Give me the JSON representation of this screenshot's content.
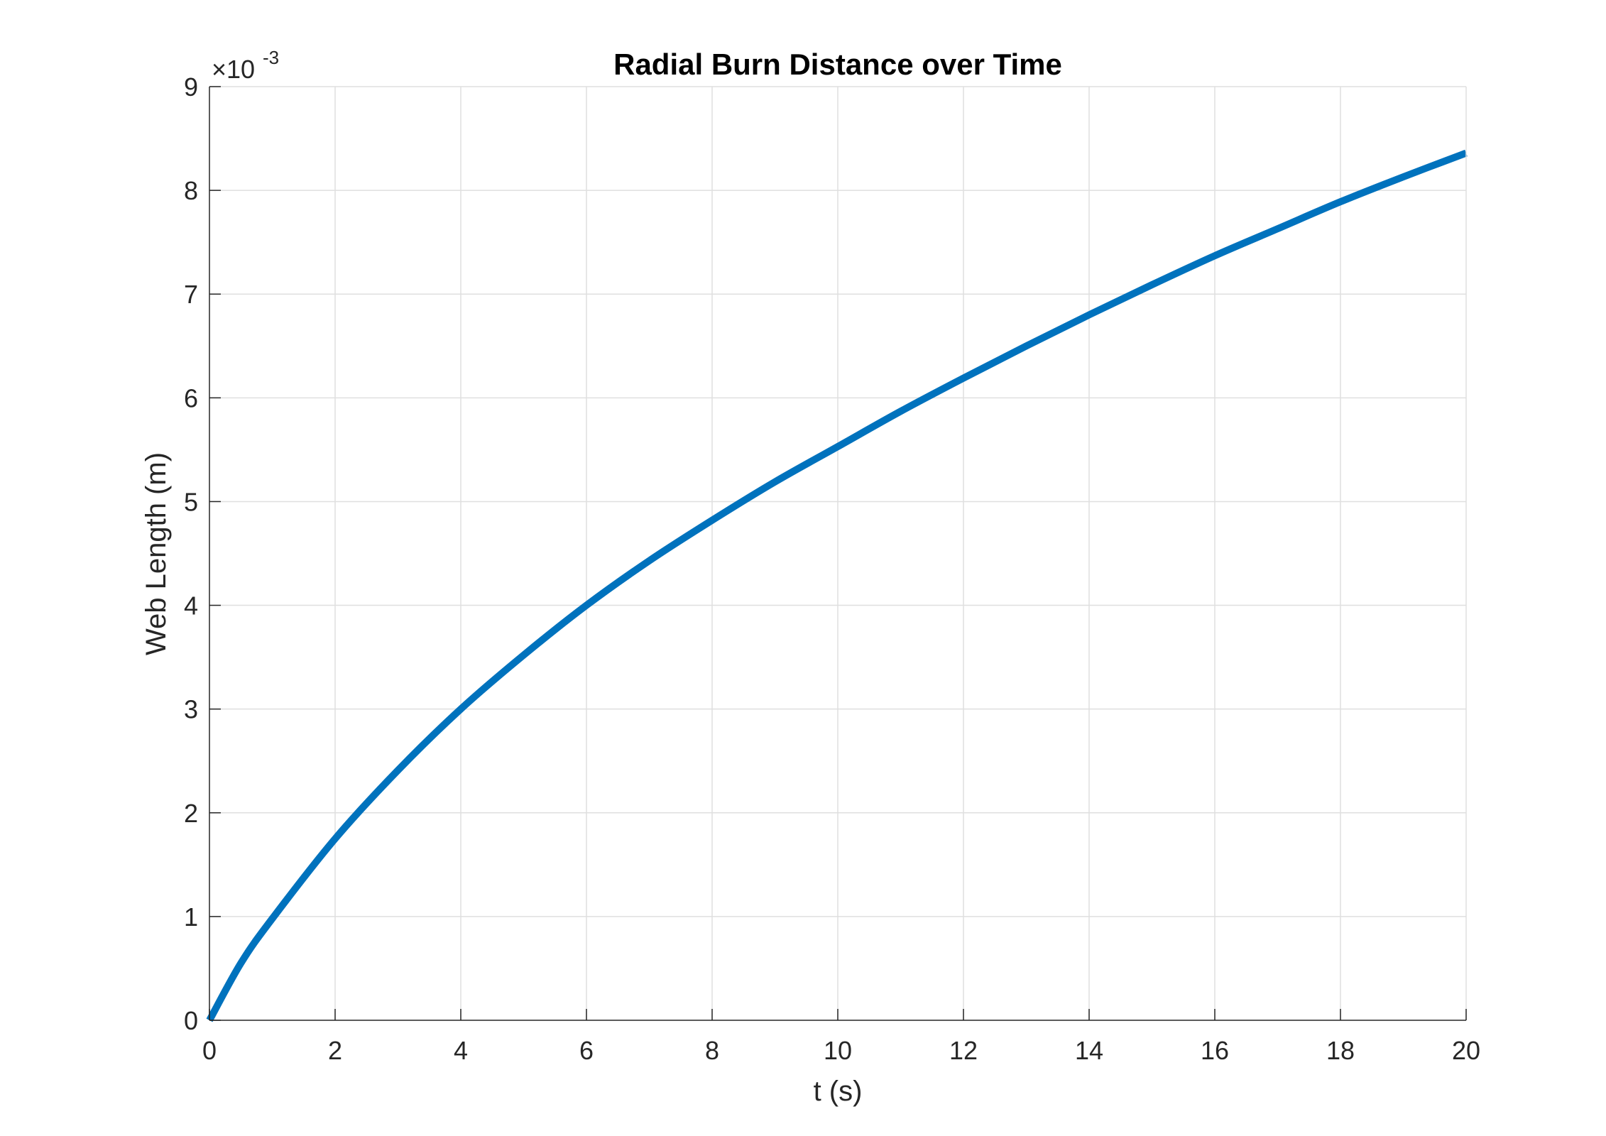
{
  "chart_data": {
    "type": "line",
    "title": "Radial Burn Distance over Time",
    "xlabel": "t (s)",
    "ylabel": "Web Length (m)",
    "xlim": [
      0,
      20
    ],
    "ylim": [
      0,
      0.009
    ],
    "xticks": [
      "0",
      "2",
      "4",
      "6",
      "8",
      "10",
      "12",
      "14",
      "16",
      "18",
      "20"
    ],
    "yticks": [
      "0",
      "1",
      "2",
      "3",
      "4",
      "5",
      "6",
      "7",
      "8",
      "9"
    ],
    "y_exponent_label": "×10",
    "y_exponent_power": "-3",
    "grid": true,
    "line_color": "#0072bd",
    "series": [
      {
        "x": [
          0,
          0.5,
          1,
          2,
          3,
          4,
          5,
          6,
          7,
          8,
          9,
          10,
          11,
          12,
          13,
          14,
          15,
          16,
          17,
          18,
          19,
          20
        ],
        "y": [
          0,
          0.00055,
          0.00098,
          0.00175,
          0.00241,
          0.003,
          0.00352,
          0.004,
          0.00443,
          0.00482,
          0.00519,
          0.00553,
          0.00587,
          0.00619,
          0.0065,
          0.0068,
          0.00709,
          0.00737,
          0.00763,
          0.00789,
          0.00813,
          0.00836
        ]
      }
    ]
  }
}
